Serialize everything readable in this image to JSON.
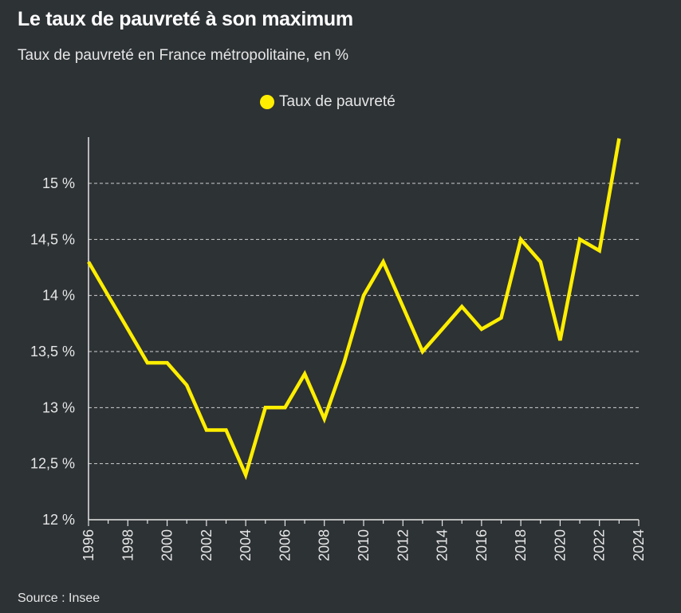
{
  "title": "Le taux de pauvreté à son maximum",
  "subtitle": "Taux de pauvreté en France métropolitaine, en %",
  "source": "Source : Insee",
  "colors": {
    "background": "#2d3235",
    "line": "#ffee00",
    "grid": "#cfcfcf",
    "axis": "#e6e6e6"
  },
  "chart_data": {
    "type": "line",
    "title": "Le taux de pauvreté à son maximum",
    "subtitle": "Taux de pauvreté en France métropolitaine, en %",
    "xlabel": "",
    "ylabel": "",
    "xlim": [
      1996,
      2024
    ],
    "ylim": [
      12,
      15.4
    ],
    "grid": "horizontal dashed",
    "legend": "top-center",
    "x_ticks": [
      "1996",
      "1998",
      "2000",
      "2002",
      "2004",
      "2006",
      "2008",
      "2010",
      "2012",
      "2014",
      "2016",
      "2018",
      "2020",
      "2022",
      "2024"
    ],
    "y_ticks": [
      {
        "value": 12,
        "label": "12 %"
      },
      {
        "value": 12.5,
        "label": "12,5 %"
      },
      {
        "value": 13,
        "label": "13 %"
      },
      {
        "value": 13.5,
        "label": "13,5 %"
      },
      {
        "value": 14,
        "label": "14 %"
      },
      {
        "value": 14.5,
        "label": "14,5 %"
      },
      {
        "value": 15,
        "label": "15 %"
      }
    ],
    "series": [
      {
        "name": "Taux de pauvreté",
        "color": "#ffee00",
        "x": [
          1996,
          1997,
          1998,
          1999,
          2000,
          2001,
          2002,
          2003,
          2004,
          2005,
          2006,
          2007,
          2008,
          2009,
          2010,
          2011,
          2012,
          2013,
          2014,
          2015,
          2016,
          2017,
          2018,
          2019,
          2020,
          2021,
          2022,
          2023
        ],
        "values": [
          14.3,
          14.0,
          13.7,
          13.4,
          13.4,
          13.2,
          12.8,
          12.8,
          12.4,
          13.0,
          13.0,
          13.3,
          12.9,
          13.4,
          14.0,
          14.3,
          13.9,
          13.5,
          13.7,
          13.9,
          13.7,
          13.8,
          14.5,
          14.3,
          13.6,
          14.5,
          14.4,
          15.4
        ]
      }
    ]
  }
}
